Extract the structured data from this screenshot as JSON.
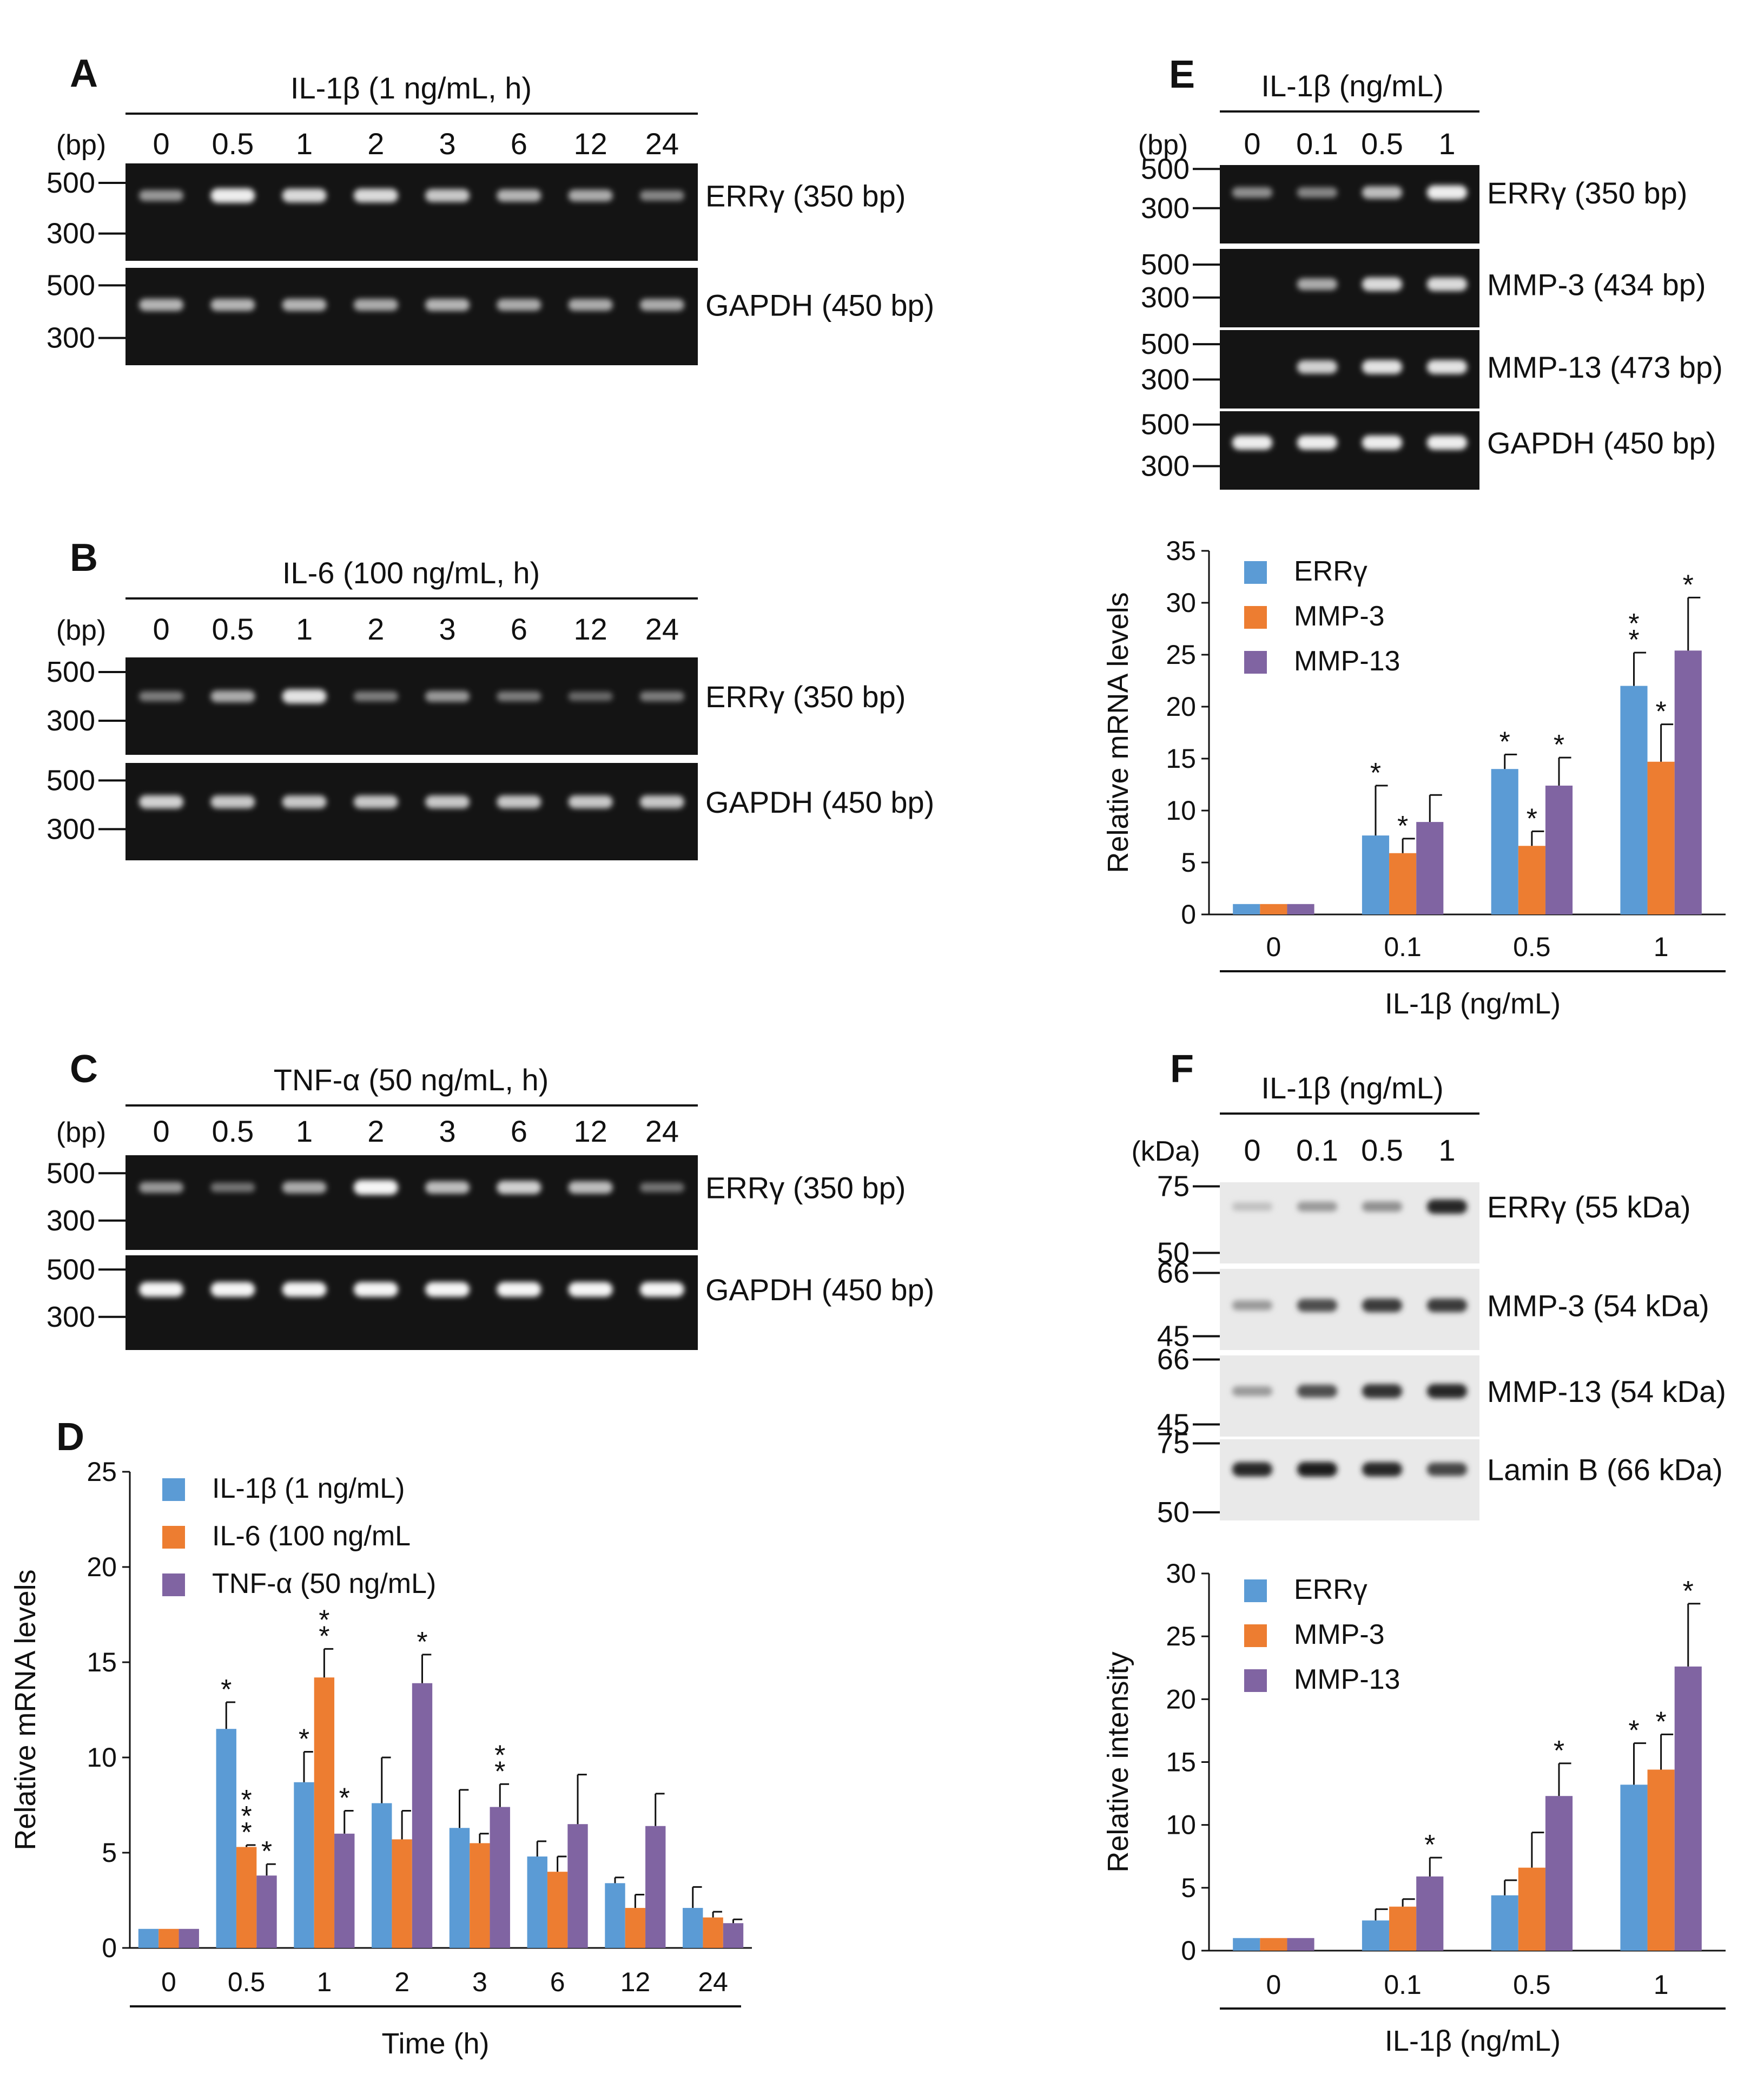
{
  "colors": {
    "blue": "#5b9bd5",
    "orange": "#ed7d31",
    "purple": "#8064a2"
  },
  "panels": {
    "A": {
      "label": "A",
      "header": "IL-1β (1 ng/mL, h)",
      "unit": "(bp)",
      "lanes": [
        "0",
        "0.5",
        "1",
        "2",
        "3",
        "6",
        "12",
        "24"
      ],
      "gels": [
        {
          "band": "ERRγ (350 bp)",
          "markers": [
            "500",
            "300"
          ],
          "intensity": [
            0.45,
            0.9,
            0.8,
            0.8,
            0.7,
            0.6,
            0.55,
            0.35
          ]
        },
        {
          "band": "GAPDH (450 bp)",
          "markers": [
            "500",
            "300"
          ],
          "intensity": [
            0.6,
            0.6,
            0.6,
            0.55,
            0.6,
            0.55,
            0.55,
            0.55
          ]
        }
      ]
    },
    "B": {
      "label": "B",
      "header": "IL-6 (100 ng/mL, h)",
      "unit": "(bp)",
      "lanes": [
        "0",
        "0.5",
        "1",
        "2",
        "3",
        "6",
        "12",
        "24"
      ],
      "gels": [
        {
          "band": "ERRγ (350 bp)",
          "markers": [
            "500",
            "300"
          ],
          "intensity": [
            0.3,
            0.55,
            0.85,
            0.3,
            0.45,
            0.3,
            0.2,
            0.3
          ]
        },
        {
          "band": "GAPDH (450 bp)",
          "markers": [
            "500",
            "300"
          ],
          "intensity": [
            0.75,
            0.7,
            0.7,
            0.7,
            0.7,
            0.7,
            0.7,
            0.7
          ]
        }
      ]
    },
    "C": {
      "label": "C",
      "header": "TNF-α (50 ng/mL, h)",
      "unit": "(bp)",
      "lanes": [
        "0",
        "0.5",
        "1",
        "2",
        "3",
        "6",
        "12",
        "24"
      ],
      "gels": [
        {
          "band": "ERRγ (350 bp)",
          "markers": [
            "500",
            "300"
          ],
          "intensity": [
            0.45,
            0.25,
            0.55,
            0.95,
            0.65,
            0.75,
            0.65,
            0.25
          ]
        },
        {
          "band": "GAPDH (450 bp)",
          "markers": [
            "500",
            "300"
          ],
          "intensity": [
            0.95,
            0.95,
            0.95,
            0.95,
            0.95,
            0.95,
            0.95,
            0.95
          ]
        }
      ]
    },
    "E": {
      "label": "E",
      "header": "IL-1β (ng/mL)",
      "unit": "(bp)",
      "lanes": [
        "0",
        "0.1",
        "0.5",
        "1"
      ],
      "gels": [
        {
          "band": "ERRγ (350 bp)",
          "markers": [
            "500",
            "300"
          ],
          "intensity": [
            0.4,
            0.35,
            0.65,
            0.9
          ]
        },
        {
          "band": "MMP-3 (434 bp)",
          "markers": [
            "500",
            "300"
          ],
          "intensity": [
            0.0,
            0.55,
            0.8,
            0.8
          ]
        },
        {
          "band": "MMP-13 (473 bp)",
          "markers": [
            "500",
            "300"
          ],
          "intensity": [
            0.0,
            0.75,
            0.85,
            0.85
          ]
        },
        {
          "band": "GAPDH (450 bp)",
          "markers": [
            "500",
            "300"
          ],
          "intensity": [
            0.9,
            0.9,
            0.9,
            0.9
          ]
        }
      ]
    },
    "F": {
      "label": "F",
      "header": "IL-1β (ng/mL)",
      "unit": "(kDa)",
      "lanes": [
        "0",
        "0.1",
        "0.5",
        "1"
      ],
      "blots": [
        {
          "band": "ERRγ (55 kDa)",
          "markers": [
            "75",
            "50"
          ],
          "intensity": [
            0.1,
            0.3,
            0.35,
            0.9
          ]
        },
        {
          "band": "MMP-3 (54 kDa)",
          "markers": [
            "66",
            "45"
          ],
          "intensity": [
            0.3,
            0.7,
            0.8,
            0.8
          ]
        },
        {
          "band": "MMP-13 (54 kDa)",
          "markers": [
            "66",
            "45"
          ],
          "intensity": [
            0.3,
            0.7,
            0.85,
            0.9
          ]
        },
        {
          "band": "Lamin B (66 kDa)",
          "markers": [
            "75",
            "50"
          ],
          "intensity": [
            0.9,
            0.95,
            0.9,
            0.75
          ]
        }
      ]
    }
  },
  "chart_data": [
    {
      "id": "D",
      "label": "D",
      "type": "bar",
      "categories": [
        "0",
        "0.5",
        "1",
        "2",
        "3",
        "6",
        "12",
        "24"
      ],
      "series": [
        {
          "name": "IL-1β (1 ng/mL)",
          "values": [
            1,
            11.5,
            8.7,
            7.6,
            6.3,
            4.8,
            3.4,
            2.1
          ],
          "errors": [
            0,
            1.4,
            1.6,
            2.4,
            2.0,
            0.8,
            0.3,
            1.1
          ],
          "stars": [
            "",
            "*",
            "*",
            "",
            "",
            "",
            "",
            ""
          ]
        },
        {
          "name": "IL-6 (100 ng/mL",
          "values": [
            1,
            5.3,
            14.2,
            5.7,
            5.5,
            4.0,
            2.1,
            1.6
          ],
          "errors": [
            0,
            0.1,
            1.5,
            1.5,
            0.5,
            0.8,
            0.7,
            0.3
          ],
          "stars": [
            "",
            "***",
            "**",
            "",
            "",
            "",
            "",
            ""
          ]
        },
        {
          "name": "TNF-α (50 ng/mL)",
          "values": [
            1,
            3.8,
            6.0,
            13.9,
            7.4,
            6.5,
            6.4,
            1.3
          ],
          "errors": [
            0,
            0.6,
            1.2,
            1.5,
            1.2,
            2.6,
            1.7,
            0.2
          ],
          "stars": [
            "",
            "*",
            "*",
            "*",
            "**",
            "",
            "",
            ""
          ]
        }
      ],
      "xlabel": "Time (h)",
      "ylabel": "Relative mRNA levels",
      "ylim": [
        0,
        25
      ],
      "yticks": [
        "0",
        "5",
        "10",
        "15",
        "20",
        "25"
      ]
    },
    {
      "id": "E",
      "type": "bar",
      "categories": [
        "0",
        "0.1",
        "0.5",
        "1"
      ],
      "series": [
        {
          "name": "ERRγ",
          "values": [
            1,
            7.6,
            14.0,
            22.0
          ],
          "errors": [
            0,
            4.8,
            1.4,
            3.2
          ],
          "stars": [
            "",
            "*",
            "*",
            "**"
          ]
        },
        {
          "name": "MMP-3",
          "values": [
            1,
            5.9,
            6.6,
            14.7
          ],
          "errors": [
            0,
            1.4,
            1.4,
            3.6
          ],
          "stars": [
            "",
            "*",
            "*",
            "*"
          ]
        },
        {
          "name": "MMP-13",
          "values": [
            1,
            8.9,
            12.4,
            25.4
          ],
          "errors": [
            0,
            2.6,
            2.7,
            5.1
          ],
          "stars": [
            "",
            "",
            "*",
            "*"
          ]
        }
      ],
      "xlabel": "IL-1β (ng/mL)",
      "ylabel": "Relative mRNA levels",
      "ylim": [
        0,
        35
      ],
      "yticks": [
        "0",
        "5",
        "10",
        "15",
        "20",
        "25",
        "30",
        "35"
      ]
    },
    {
      "id": "F",
      "type": "bar",
      "categories": [
        "0",
        "0.1",
        "0.5",
        "1"
      ],
      "series": [
        {
          "name": "ERRγ",
          "values": [
            1,
            2.4,
            4.4,
            13.2
          ],
          "errors": [
            0,
            0.9,
            1.2,
            3.3
          ],
          "stars": [
            "",
            "",
            "",
            "*"
          ]
        },
        {
          "name": "MMP-3",
          "values": [
            1,
            3.5,
            6.6,
            14.4
          ],
          "errors": [
            0,
            0.6,
            2.8,
            2.8
          ],
          "stars": [
            "",
            "",
            "",
            "*"
          ]
        },
        {
          "name": "MMP-13",
          "values": [
            1,
            5.9,
            12.3,
            22.6
          ],
          "errors": [
            0,
            1.5,
            2.6,
            5.0
          ],
          "stars": [
            "",
            "*",
            "*",
            "*"
          ]
        }
      ],
      "xlabel": "IL-1β (ng/mL)",
      "ylabel": "Relative intensity",
      "ylim": [
        0,
        30
      ],
      "yticks": [
        "0",
        "5",
        "10",
        "15",
        "20",
        "25",
        "30"
      ]
    }
  ]
}
